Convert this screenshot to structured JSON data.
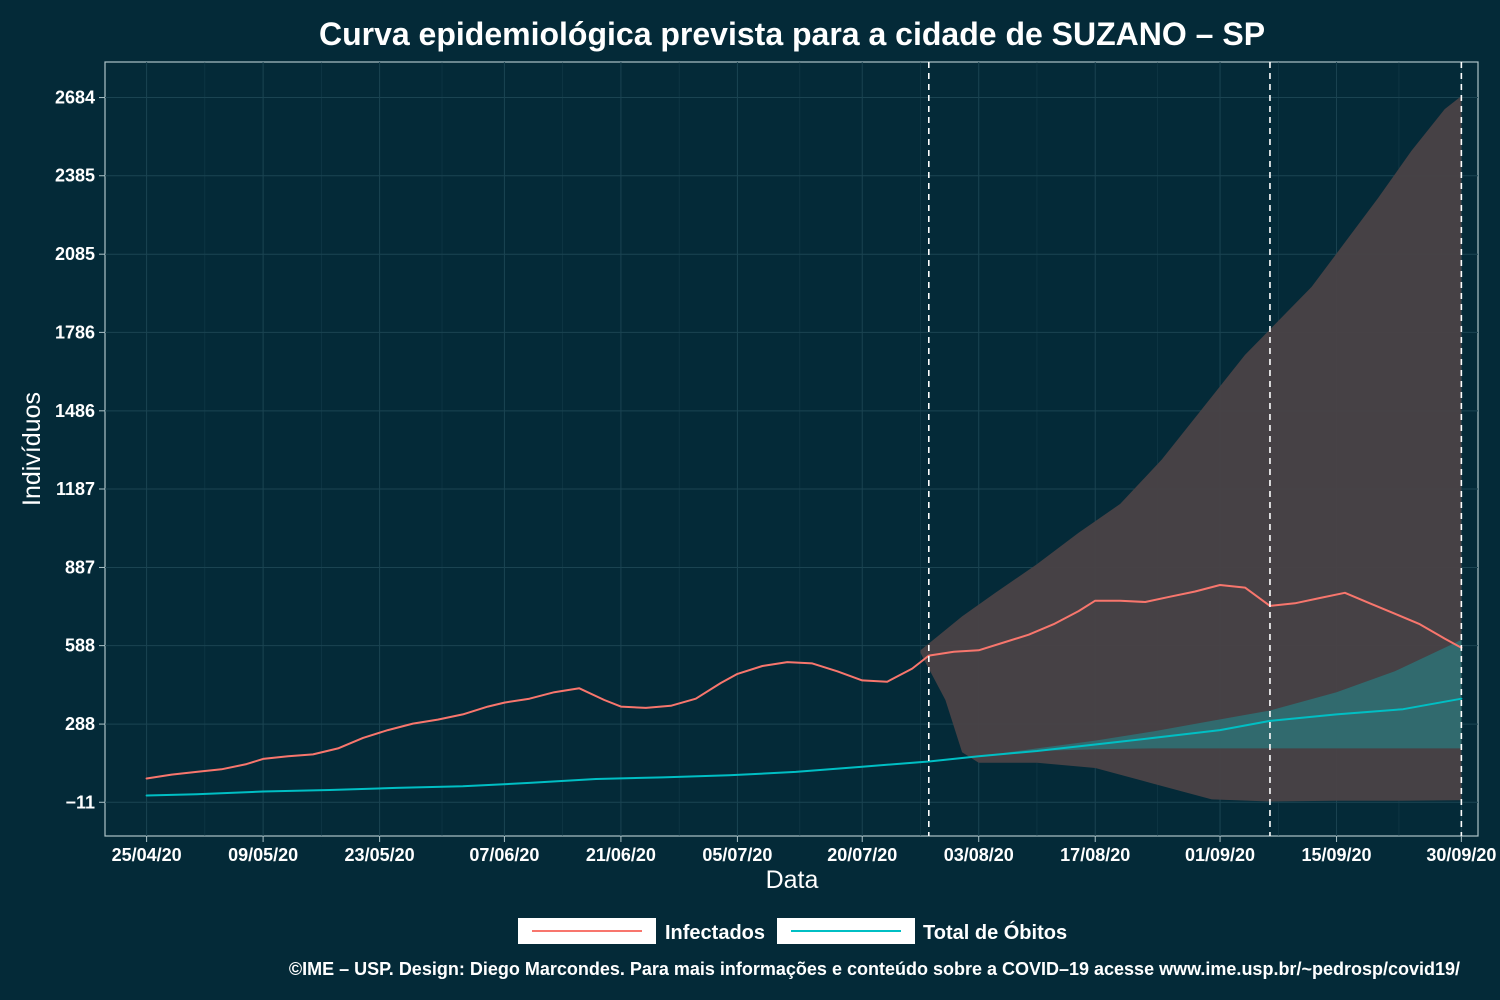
{
  "colors": {
    "background": "#042a38",
    "infected": "#f8766d",
    "deaths": "#00bfc4",
    "infected_band": "#4a4246",
    "deaths_band": "#2f6f72",
    "grid": "#1b4452",
    "text": "#ffffff"
  },
  "chart_data": {
    "type": "line",
    "title": "Curva epidemiológica prevista para a cidade de SUZANO – SP",
    "xlabel": "Data",
    "ylabel": "Indivíduos",
    "x_range": [
      "2020-04-20",
      "2020-10-02"
    ],
    "ylim": [
      -140,
      2820
    ],
    "y_ticks": [
      -11,
      288,
      588,
      887,
      1187,
      1486,
      1786,
      2085,
      2385,
      2684
    ],
    "y_tick_labels": [
      "−11",
      "288",
      "588",
      "887",
      "1187",
      "1486",
      "1786",
      "2085",
      "2385",
      "2684"
    ],
    "x_ticks": [
      "2020-04-25",
      "2020-05-09",
      "2020-05-23",
      "2020-06-07",
      "2020-06-21",
      "2020-07-05",
      "2020-07-20",
      "2020-08-03",
      "2020-08-17",
      "2020-09-01",
      "2020-09-15",
      "2020-09-30"
    ],
    "x_tick_labels": [
      "25/04/20",
      "09/05/20",
      "23/05/20",
      "07/06/20",
      "21/06/20",
      "05/07/20",
      "20/07/20",
      "03/08/20",
      "17/08/20",
      "01/09/20",
      "15/09/20",
      "30/09/20"
    ],
    "vlines": [
      "2020-07-28",
      "2020-09-07",
      "2020-09-30"
    ],
    "grid": true,
    "legend_position": "bottom",
    "series": [
      {
        "name": "Infectados",
        "color_key": "infected",
        "points": [
          [
            "2020-04-25",
            80
          ],
          [
            "2020-04-28",
            95
          ],
          [
            "2020-05-01",
            105
          ],
          [
            "2020-05-04",
            115
          ],
          [
            "2020-05-07",
            135
          ],
          [
            "2020-05-09",
            155
          ],
          [
            "2020-05-12",
            165
          ],
          [
            "2020-05-15",
            172
          ],
          [
            "2020-05-18",
            195
          ],
          [
            "2020-05-21",
            235
          ],
          [
            "2020-05-24",
            265
          ],
          [
            "2020-05-27",
            290
          ],
          [
            "2020-05-30",
            305
          ],
          [
            "2020-06-02",
            325
          ],
          [
            "2020-06-05",
            355
          ],
          [
            "2020-06-07",
            370
          ],
          [
            "2020-06-10",
            385
          ],
          [
            "2020-06-13",
            410
          ],
          [
            "2020-06-16",
            425
          ],
          [
            "2020-06-19",
            380
          ],
          [
            "2020-06-21",
            355
          ],
          [
            "2020-06-24",
            350
          ],
          [
            "2020-06-27",
            358
          ],
          [
            "2020-06-30",
            385
          ],
          [
            "2020-07-03",
            445
          ],
          [
            "2020-07-05",
            480
          ],
          [
            "2020-07-08",
            510
          ],
          [
            "2020-07-11",
            525
          ],
          [
            "2020-07-14",
            520
          ],
          [
            "2020-07-17",
            490
          ],
          [
            "2020-07-20",
            455
          ],
          [
            "2020-07-23",
            450
          ],
          [
            "2020-07-26",
            500
          ],
          [
            "2020-07-28",
            550
          ],
          [
            "2020-07-31",
            565
          ],
          [
            "2020-08-03",
            570
          ],
          [
            "2020-08-06",
            600
          ],
          [
            "2020-08-09",
            630
          ],
          [
            "2020-08-12",
            670
          ],
          [
            "2020-08-15",
            720
          ],
          [
            "2020-08-17",
            760
          ],
          [
            "2020-08-20",
            760
          ],
          [
            "2020-08-23",
            755
          ],
          [
            "2020-08-26",
            775
          ],
          [
            "2020-08-29",
            795
          ],
          [
            "2020-09-01",
            820
          ],
          [
            "2020-09-04",
            810
          ],
          [
            "2020-09-07",
            740
          ],
          [
            "2020-09-10",
            750
          ],
          [
            "2020-09-13",
            770
          ],
          [
            "2020-09-16",
            790
          ],
          [
            "2020-09-19",
            750
          ],
          [
            "2020-09-22",
            710
          ],
          [
            "2020-09-25",
            670
          ],
          [
            "2020-09-28",
            615
          ],
          [
            "2020-09-30",
            580
          ]
        ]
      },
      {
        "name": "Total de Óbitos",
        "color_key": "deaths",
        "points": [
          [
            "2020-04-25",
            15
          ],
          [
            "2020-05-01",
            20
          ],
          [
            "2020-05-09",
            30
          ],
          [
            "2020-05-17",
            36
          ],
          [
            "2020-05-25",
            44
          ],
          [
            "2020-06-02",
            50
          ],
          [
            "2020-06-10",
            63
          ],
          [
            "2020-06-18",
            78
          ],
          [
            "2020-06-26",
            84
          ],
          [
            "2020-07-04",
            92
          ],
          [
            "2020-07-12",
            105
          ],
          [
            "2020-07-20",
            125
          ],
          [
            "2020-07-28",
            145
          ],
          [
            "2020-08-03",
            165
          ],
          [
            "2020-08-10",
            185
          ],
          [
            "2020-08-17",
            210
          ],
          [
            "2020-08-24",
            235
          ],
          [
            "2020-09-01",
            265
          ],
          [
            "2020-09-07",
            300
          ],
          [
            "2020-09-15",
            325
          ],
          [
            "2020-09-23",
            345
          ],
          [
            "2020-09-30",
            385
          ]
        ]
      }
    ],
    "bands": [
      {
        "color_key": "infected_band",
        "upper": [
          [
            "2020-07-27",
            570
          ],
          [
            "2020-08-01",
            700
          ],
          [
            "2020-08-05",
            790
          ],
          [
            "2020-08-10",
            900
          ],
          [
            "2020-08-15",
            1020
          ],
          [
            "2020-08-20",
            1130
          ],
          [
            "2020-08-25",
            1300
          ],
          [
            "2020-08-30",
            1500
          ],
          [
            "2020-09-04",
            1700
          ],
          [
            "2020-09-08",
            1830
          ],
          [
            "2020-09-12",
            1960
          ],
          [
            "2020-09-16",
            2130
          ],
          [
            "2020-09-20",
            2300
          ],
          [
            "2020-09-24",
            2480
          ],
          [
            "2020-09-28",
            2640
          ],
          [
            "2020-09-30",
            2690
          ]
        ],
        "lower": [
          [
            "2020-07-27",
            560
          ],
          [
            "2020-07-30",
            380
          ],
          [
            "2020-08-01",
            180
          ],
          [
            "2020-08-03",
            140
          ],
          [
            "2020-08-10",
            140
          ],
          [
            "2020-08-17",
            120
          ],
          [
            "2020-08-24",
            60
          ],
          [
            "2020-08-31",
            0
          ],
          [
            "2020-09-07",
            -8
          ],
          [
            "2020-09-15",
            -5
          ],
          [
            "2020-09-23",
            -5
          ],
          [
            "2020-09-30",
            -3
          ]
        ]
      },
      {
        "color_key": "deaths_band",
        "upper": [
          [
            "2020-07-28",
            145
          ],
          [
            "2020-08-03",
            165
          ],
          [
            "2020-08-10",
            195
          ],
          [
            "2020-08-17",
            225
          ],
          [
            "2020-08-24",
            260
          ],
          [
            "2020-08-31",
            300
          ],
          [
            "2020-09-07",
            340
          ],
          [
            "2020-09-15",
            410
          ],
          [
            "2020-09-22",
            490
          ],
          [
            "2020-09-30",
            610
          ]
        ],
        "lower": [
          [
            "2020-07-28",
            145
          ],
          [
            "2020-08-03",
            165
          ],
          [
            "2020-08-10",
            185
          ],
          [
            "2020-08-17",
            192
          ],
          [
            "2020-08-24",
            195
          ],
          [
            "2020-08-31",
            195
          ],
          [
            "2020-09-07",
            195
          ],
          [
            "2020-09-15",
            195
          ],
          [
            "2020-09-22",
            195
          ],
          [
            "2020-09-30",
            195
          ]
        ]
      }
    ]
  },
  "legend": {
    "items": [
      {
        "label": "Infectados",
        "color_key": "infected"
      },
      {
        "label": "Total de Óbitos",
        "color_key": "deaths"
      }
    ]
  },
  "caption": "©IME – USP. Design: Diego Marcondes. Para mais informações e conteúdo sobre a COVID–19 acesse www.ime.usp.br/~pedrosp/covid19/"
}
